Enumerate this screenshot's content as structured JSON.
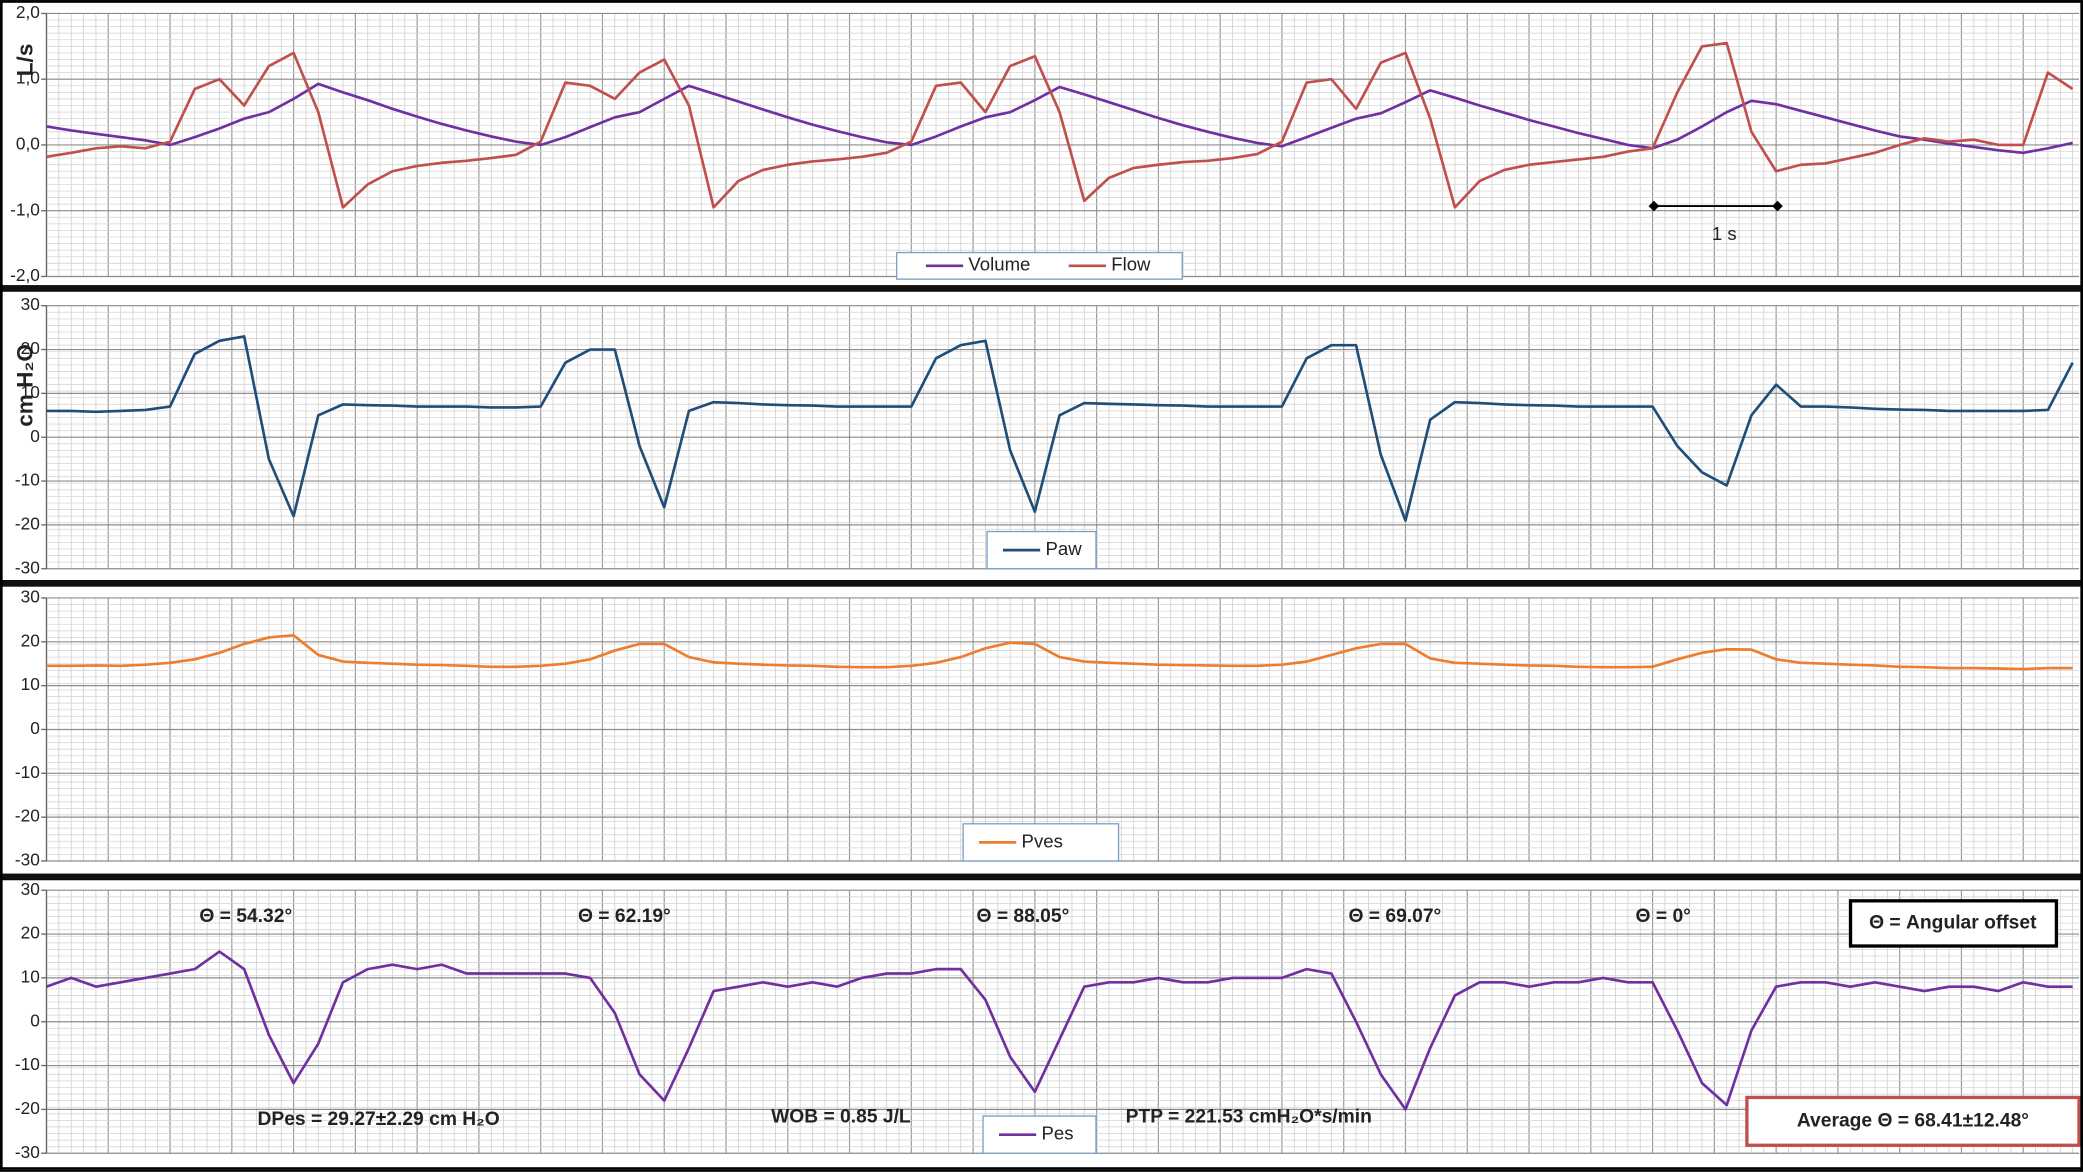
{
  "chart_data": [
    {
      "type": "line",
      "y_label": "L/s",
      "ylim": [
        -2,
        2
      ],
      "yticks": [
        {
          "value": -2,
          "label": "-2,0"
        },
        {
          "value": -1,
          "label": "-1,0"
        },
        {
          "value": 0,
          "label": "0,0"
        },
        {
          "value": 1,
          "label": "1,0"
        },
        {
          "value": 2,
          "label": "2,0"
        }
      ],
      "grid": true,
      "annotations": [
        "1 s"
      ],
      "series": [
        {
          "name": "Volume",
          "color": "#7030a0",
          "values": [
            0.28,
            0.22,
            0.17,
            0.12,
            0.07,
            0.0,
            0.12,
            0.25,
            0.4,
            0.5,
            0.7,
            0.93,
            0.8,
            0.68,
            0.55,
            0.43,
            0.32,
            0.22,
            0.13,
            0.05,
            0.0,
            0.12,
            0.27,
            0.42,
            0.5,
            0.7,
            0.9,
            0.78,
            0.66,
            0.54,
            0.42,
            0.31,
            0.21,
            0.12,
            0.04,
            0.0,
            0.13,
            0.28,
            0.42,
            0.5,
            0.68,
            0.88,
            0.77,
            0.65,
            0.53,
            0.41,
            0.3,
            0.2,
            0.11,
            0.03,
            -0.02,
            0.12,
            0.26,
            0.4,
            0.48,
            0.65,
            0.83,
            0.72,
            0.6,
            0.49,
            0.38,
            0.28,
            0.18,
            0.09,
            0.0,
            -0.05,
            0.08,
            0.28,
            0.5,
            0.67,
            0.62,
            0.52,
            0.42,
            0.32,
            0.22,
            0.13,
            0.08,
            0.02,
            -0.03,
            -0.08,
            -0.12,
            -0.05,
            0.03
          ]
        },
        {
          "name": "Flow",
          "color": "#c0504d",
          "values": [
            -0.18,
            -0.12,
            -0.05,
            -0.02,
            -0.05,
            0.05,
            0.85,
            1.0,
            0.6,
            1.2,
            1.4,
            0.5,
            -0.95,
            -0.6,
            -0.4,
            -0.32,
            -0.27,
            -0.24,
            -0.2,
            -0.15,
            0.05,
            0.95,
            0.9,
            0.7,
            1.1,
            1.3,
            0.6,
            -0.95,
            -0.55,
            -0.38,
            -0.3,
            -0.25,
            -0.22,
            -0.18,
            -0.12,
            0.05,
            0.9,
            0.95,
            0.5,
            1.2,
            1.35,
            0.5,
            -0.85,
            -0.5,
            -0.35,
            -0.3,
            -0.26,
            -0.24,
            -0.2,
            -0.14,
            0.05,
            0.95,
            1.0,
            0.55,
            1.25,
            1.4,
            0.4,
            -0.95,
            -0.55,
            -0.38,
            -0.3,
            -0.26,
            -0.22,
            -0.18,
            -0.1,
            -0.05,
            0.8,
            1.5,
            1.55,
            0.2,
            -0.4,
            -0.3,
            -0.28,
            -0.2,
            -0.12,
            0.0,
            0.1,
            0.05,
            0.08,
            0.0,
            0.0,
            1.1,
            0.85
          ]
        }
      ]
    },
    {
      "type": "line",
      "y_label": "cm H₂O",
      "ylim": [
        -30,
        30
      ],
      "yticks": [
        -30,
        -20,
        -10,
        0,
        10,
        20,
        30
      ],
      "grid": true,
      "series": [
        {
          "name": "Paw",
          "color": "#1f4e79",
          "values": [
            6,
            6,
            5.8,
            6,
            6.2,
            7,
            19,
            22,
            23,
            -5,
            -18,
            5,
            7.5,
            7.3,
            7.2,
            7,
            7,
            7,
            6.8,
            6.8,
            7,
            17,
            20,
            20,
            -2,
            -16,
            6,
            8,
            7.8,
            7.5,
            7.3,
            7.2,
            7,
            7,
            7,
            7,
            18,
            21,
            22,
            -3,
            -17,
            5,
            7.8,
            7.6,
            7.5,
            7.3,
            7.2,
            7,
            7,
            7,
            7,
            18,
            21,
            21,
            -4,
            -19,
            4,
            8,
            7.8,
            7.5,
            7.3,
            7.2,
            7,
            7,
            7,
            7,
            -2,
            -8,
            -11,
            5,
            12,
            7,
            7,
            6.8,
            6.5,
            6.3,
            6.2,
            6,
            6,
            6,
            6,
            6.2,
            17
          ]
        }
      ]
    },
    {
      "type": "line",
      "ylim": [
        -30,
        30
      ],
      "yticks": [
        -30,
        -20,
        -10,
        0,
        10,
        20,
        30
      ],
      "grid": true,
      "series": [
        {
          "name": "Pves",
          "color": "#ed7d31",
          "values": [
            14.5,
            14.5,
            14.6,
            14.5,
            14.8,
            15.2,
            16,
            17.5,
            19.5,
            21,
            21.5,
            17,
            15.5,
            15.2,
            15,
            14.8,
            14.7,
            14.5,
            14.3,
            14.3,
            14.5,
            15,
            16,
            18,
            19.5,
            19.5,
            16.5,
            15.3,
            15,
            14.8,
            14.6,
            14.5,
            14.3,
            14.2,
            14.2,
            14.5,
            15.2,
            16.5,
            18.5,
            19.8,
            19.5,
            16.5,
            15.5,
            15.2,
            15,
            14.8,
            14.7,
            14.6,
            14.5,
            14.5,
            14.8,
            15.5,
            17,
            18.5,
            19.5,
            19.5,
            16.2,
            15.2,
            15,
            14.8,
            14.6,
            14.5,
            14.3,
            14.2,
            14.2,
            14.3,
            16,
            17.5,
            18.3,
            18.2,
            16,
            15.2,
            15,
            14.8,
            14.6,
            14.3,
            14.2,
            14,
            14,
            13.9,
            13.8,
            14,
            14
          ]
        }
      ]
    },
    {
      "type": "line",
      "ylim": [
        -30,
        30
      ],
      "yticks": [
        -30,
        -20,
        -10,
        0,
        10,
        20,
        30
      ],
      "grid": true,
      "annotations": [
        "Θ = 54.32°",
        "Θ = 62.19°",
        "Θ = 88.05°",
        "Θ = 69.07°",
        "Θ = 0°",
        "Θ = Angular offset",
        "DPes = 29.27±2.29 cm H₂O",
        "WOB = 0.85 J/L",
        "PTP = 221.53 cmH₂O*s/min",
        "Average  Θ = 68.41±12.48°"
      ],
      "series": [
        {
          "name": "Pes",
          "color": "#7030a0",
          "values": [
            8,
            10,
            8,
            9,
            10,
            11,
            12,
            16,
            12,
            -3,
            -14,
            -5,
            9,
            12,
            13,
            12,
            13,
            11,
            11,
            11,
            11,
            11,
            10,
            2,
            -12,
            -18,
            -6,
            7,
            8,
            9,
            8,
            9,
            8,
            10,
            11,
            11,
            12,
            12,
            5,
            -8,
            -16,
            -4,
            8,
            9,
            9,
            10,
            9,
            9,
            10,
            10,
            10,
            12,
            11,
            0,
            -12,
            -20,
            -6,
            6,
            9,
            9,
            8,
            9,
            9,
            10,
            9,
            9,
            -2,
            -14,
            -19,
            -2,
            8,
            9,
            9,
            8,
            9,
            8,
            7,
            8,
            8,
            7,
            9,
            8,
            8
          ]
        }
      ]
    }
  ]
}
